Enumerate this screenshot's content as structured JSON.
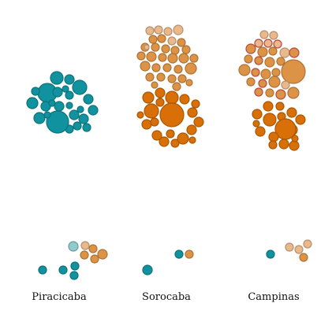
{
  "cities": [
    {
      "name": "Piracicaba"
    },
    {
      "name": "Sorocaba"
    },
    {
      "name": "Campinas"
    }
  ],
  "colors": {
    "teal": "#11929f",
    "teal_light": "#86c4c9",
    "orange_dark": "#d86f07",
    "orange_mid": "#dc9345",
    "orange_pale": "#e9b98c",
    "red_ring": "#b8473f"
  }
}
